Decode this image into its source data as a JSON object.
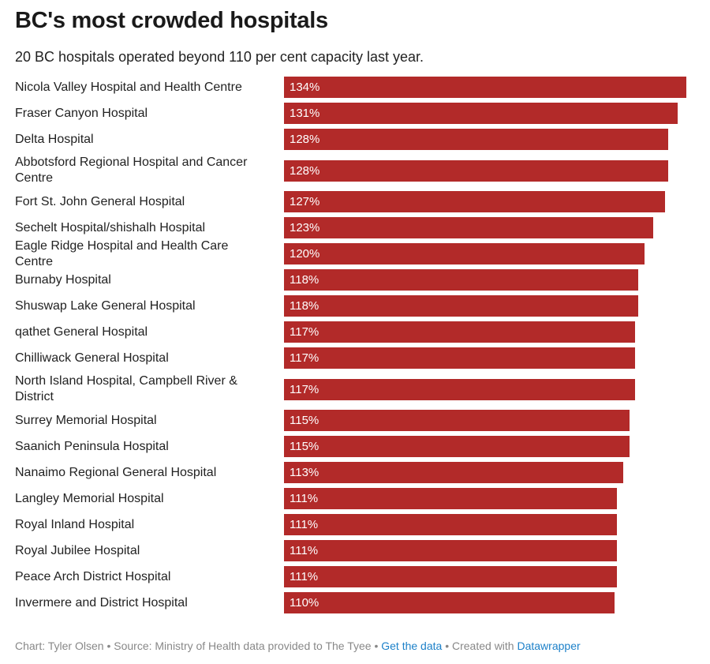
{
  "header": {
    "title": "BC's most crowded hospitals",
    "subtitle": "20 BC hospitals operated beyond 110 per cent capacity last year."
  },
  "colors": {
    "bar": "#b22a29",
    "link": "#1d81c9"
  },
  "chart_data": {
    "type": "bar",
    "orientation": "horizontal",
    "title": "BC's most crowded hospitals",
    "subtitle": "20 BC hospitals operated beyond 110 per cent capacity last year.",
    "xlim": [
      0,
      134
    ],
    "grid": false,
    "value_suffix": "%",
    "categories": [
      "Nicola Valley Hospital and Health Centre",
      "Fraser Canyon Hospital",
      "Delta Hospital",
      "Abbotsford Regional Hospital and Cancer Centre",
      "Fort St. John General Hospital",
      "Sechelt Hospital/shishalh Hospital",
      "Eagle Ridge Hospital and Health Care Centre",
      "Burnaby Hospital",
      "Shuswap Lake General Hospital",
      "qathet General Hospital",
      "Chilliwack General Hospital",
      "North Island Hospital, Campbell River & District",
      "Surrey Memorial Hospital",
      "Saanich Peninsula Hospital",
      "Nanaimo Regional General Hospital",
      "Langley Memorial Hospital",
      "Royal Inland Hospital",
      "Royal Jubilee Hospital",
      "Peace Arch District Hospital",
      "Invermere and District Hospital"
    ],
    "values": [
      134,
      131,
      128,
      128,
      127,
      123,
      120,
      118,
      118,
      117,
      117,
      117,
      115,
      115,
      113,
      111,
      111,
      111,
      111,
      110
    ],
    "labels": [
      "134%",
      "131%",
      "128%",
      "128%",
      "127%",
      "123%",
      "120%",
      "118%",
      "118%",
      "117%",
      "117%",
      "117%",
      "115%",
      "115%",
      "113%",
      "111%",
      "111%",
      "111%",
      "111%",
      "110%"
    ]
  },
  "footer": {
    "credit": "Chart: Tyler Olsen • Source: Ministry of Health data provided to The Tyee • ",
    "get_data": "Get the data",
    "created": " • Created with ",
    "datawrapper": "Datawrapper"
  }
}
